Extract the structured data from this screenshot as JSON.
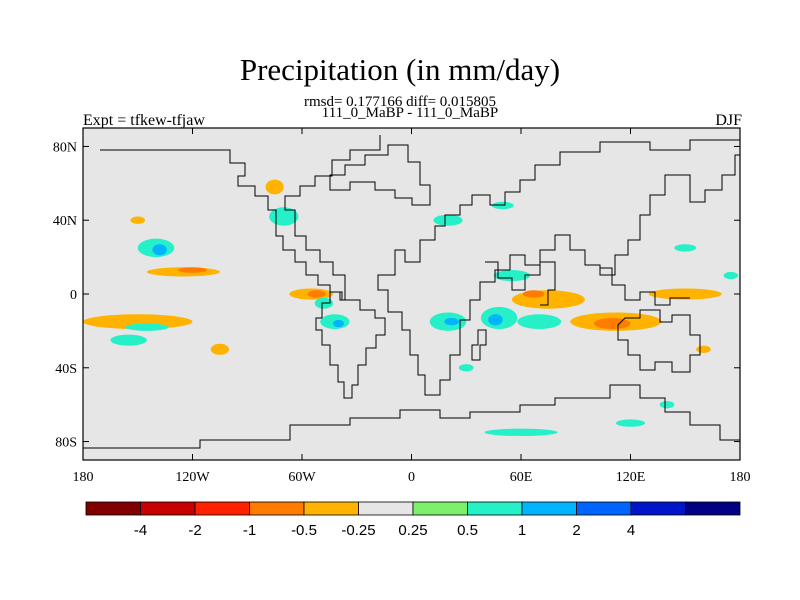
{
  "chart_data": {
    "type": "heatmap",
    "title": "Precipitation (in mm/day)",
    "subtitle": "rmsd= 0.177166 diff= 0.015805",
    "case_label": "111_0_MaBP - 111_0_MaBP",
    "left_label": "Expt = tfkew-tfjaw",
    "right_label": "DJF",
    "x_ticks": [
      {
        "value": -180,
        "label": "180"
      },
      {
        "value": -120,
        "label": "120W"
      },
      {
        "value": -60,
        "label": "60W"
      },
      {
        "value": 0,
        "label": "0"
      },
      {
        "value": 60,
        "label": "60E"
      },
      {
        "value": 120,
        "label": "120E"
      },
      {
        "value": 180,
        "label": "180"
      }
    ],
    "y_ticks": [
      {
        "value": 80,
        "label": "80N"
      },
      {
        "value": 40,
        "label": "40N"
      },
      {
        "value": 0,
        "label": "0"
      },
      {
        "value": -40,
        "label": "40S"
      },
      {
        "value": -80,
        "label": "80S"
      }
    ],
    "xlim": [
      -180,
      180
    ],
    "ylim": [
      -90,
      90
    ],
    "colorbar": {
      "colors": [
        "#800000",
        "#c80000",
        "#ff2000",
        "#ff7c00",
        "#ffb300",
        "#e6e6e6",
        "#7cf06a",
        "#26f0c8",
        "#00b4ff",
        "#0064ff",
        "#0014c8",
        "#000080"
      ],
      "labels": [
        "-4",
        "-2",
        "-1",
        "-0.5",
        "-0.25",
        "0.25",
        "0.5",
        "1",
        "2",
        "4"
      ]
    },
    "background_color": "#e6e6e6",
    "anomaly_regions": [
      {
        "lon": -150,
        "lat": -15,
        "rx": 30,
        "ry": 4,
        "level": -0.3
      },
      {
        "lon": -145,
        "lat": -18,
        "rx": 12,
        "ry": 2,
        "level": 0.6
      },
      {
        "lon": -140,
        "lat": 25,
        "rx": 10,
        "ry": 5,
        "level": 0.6
      },
      {
        "lon": -138,
        "lat": 24,
        "rx": 4,
        "ry": 3,
        "level": 1.5
      },
      {
        "lon": -125,
        "lat": 12,
        "rx": 20,
        "ry": 2.5,
        "level": -0.3
      },
      {
        "lon": -120,
        "lat": 13,
        "rx": 8,
        "ry": 1.5,
        "level": -0.7
      },
      {
        "lon": -155,
        "lat": -25,
        "rx": 10,
        "ry": 3,
        "level": 0.5
      },
      {
        "lon": -105,
        "lat": -30,
        "rx": 5,
        "ry": 3,
        "level": -0.3
      },
      {
        "lon": -70,
        "lat": 42,
        "rx": 8,
        "ry": 5,
        "level": 0.5
      },
      {
        "lon": -75,
        "lat": 58,
        "rx": 5,
        "ry": 4,
        "level": -0.3
      },
      {
        "lon": -55,
        "lat": 0,
        "rx": 12,
        "ry": 3,
        "level": -0.3
      },
      {
        "lon": -52,
        "lat": 0,
        "rx": 5,
        "ry": 2,
        "level": -0.8
      },
      {
        "lon": -48,
        "lat": -5,
        "rx": 5,
        "ry": 3,
        "level": 0.5
      },
      {
        "lon": -42,
        "lat": -15,
        "rx": 8,
        "ry": 4,
        "level": 0.6
      },
      {
        "lon": -40,
        "lat": -16,
        "rx": 3,
        "ry": 2,
        "level": 1.5
      },
      {
        "lon": 20,
        "lat": -15,
        "rx": 10,
        "ry": 5,
        "level": 0.6
      },
      {
        "lon": 22,
        "lat": -15,
        "rx": 4,
        "ry": 2,
        "level": 1.5
      },
      {
        "lon": 48,
        "lat": -13,
        "rx": 10,
        "ry": 6,
        "level": 0.6
      },
      {
        "lon": 46,
        "lat": -14,
        "rx": 4,
        "ry": 3,
        "level": 1.5
      },
      {
        "lon": 70,
        "lat": -15,
        "rx": 12,
        "ry": 4,
        "level": 0.6
      },
      {
        "lon": 75,
        "lat": -3,
        "rx": 20,
        "ry": 5,
        "level": -0.3
      },
      {
        "lon": 67,
        "lat": 0,
        "rx": 6,
        "ry": 2,
        "level": -0.7
      },
      {
        "lon": 112,
        "lat": -15,
        "rx": 25,
        "ry": 5,
        "level": -0.3
      },
      {
        "lon": 110,
        "lat": -16,
        "rx": 10,
        "ry": 3,
        "level": -0.7
      },
      {
        "lon": 150,
        "lat": 0,
        "rx": 20,
        "ry": 3,
        "level": -0.3
      },
      {
        "lon": 20,
        "lat": 40,
        "rx": 8,
        "ry": 3,
        "level": 0.5
      },
      {
        "lon": 50,
        "lat": 48,
        "rx": 6,
        "ry": 2,
        "level": 0.5
      },
      {
        "lon": 55,
        "lat": 10,
        "rx": 10,
        "ry": 3,
        "level": 0.5
      },
      {
        "lon": 150,
        "lat": 25,
        "rx": 6,
        "ry": 2,
        "level": 0.5
      },
      {
        "lon": -150,
        "lat": 40,
        "rx": 4,
        "ry": 2,
        "level": -0.3
      },
      {
        "lon": 30,
        "lat": -40,
        "rx": 4,
        "ry": 2,
        "level": 0.5
      },
      {
        "lon": 60,
        "lat": -75,
        "rx": 20,
        "ry": 2,
        "level": 0.5
      },
      {
        "lon": 120,
        "lat": -70,
        "rx": 8,
        "ry": 2,
        "level": 0.5
      },
      {
        "lon": 140,
        "lat": -60,
        "rx": 4,
        "ry": 2,
        "level": 0.5
      },
      {
        "lon": 160,
        "lat": -30,
        "rx": 4,
        "ry": 2,
        "level": -0.3
      },
      {
        "lon": 175,
        "lat": 10,
        "rx": 4,
        "ry": 2,
        "level": 0.5
      }
    ]
  }
}
